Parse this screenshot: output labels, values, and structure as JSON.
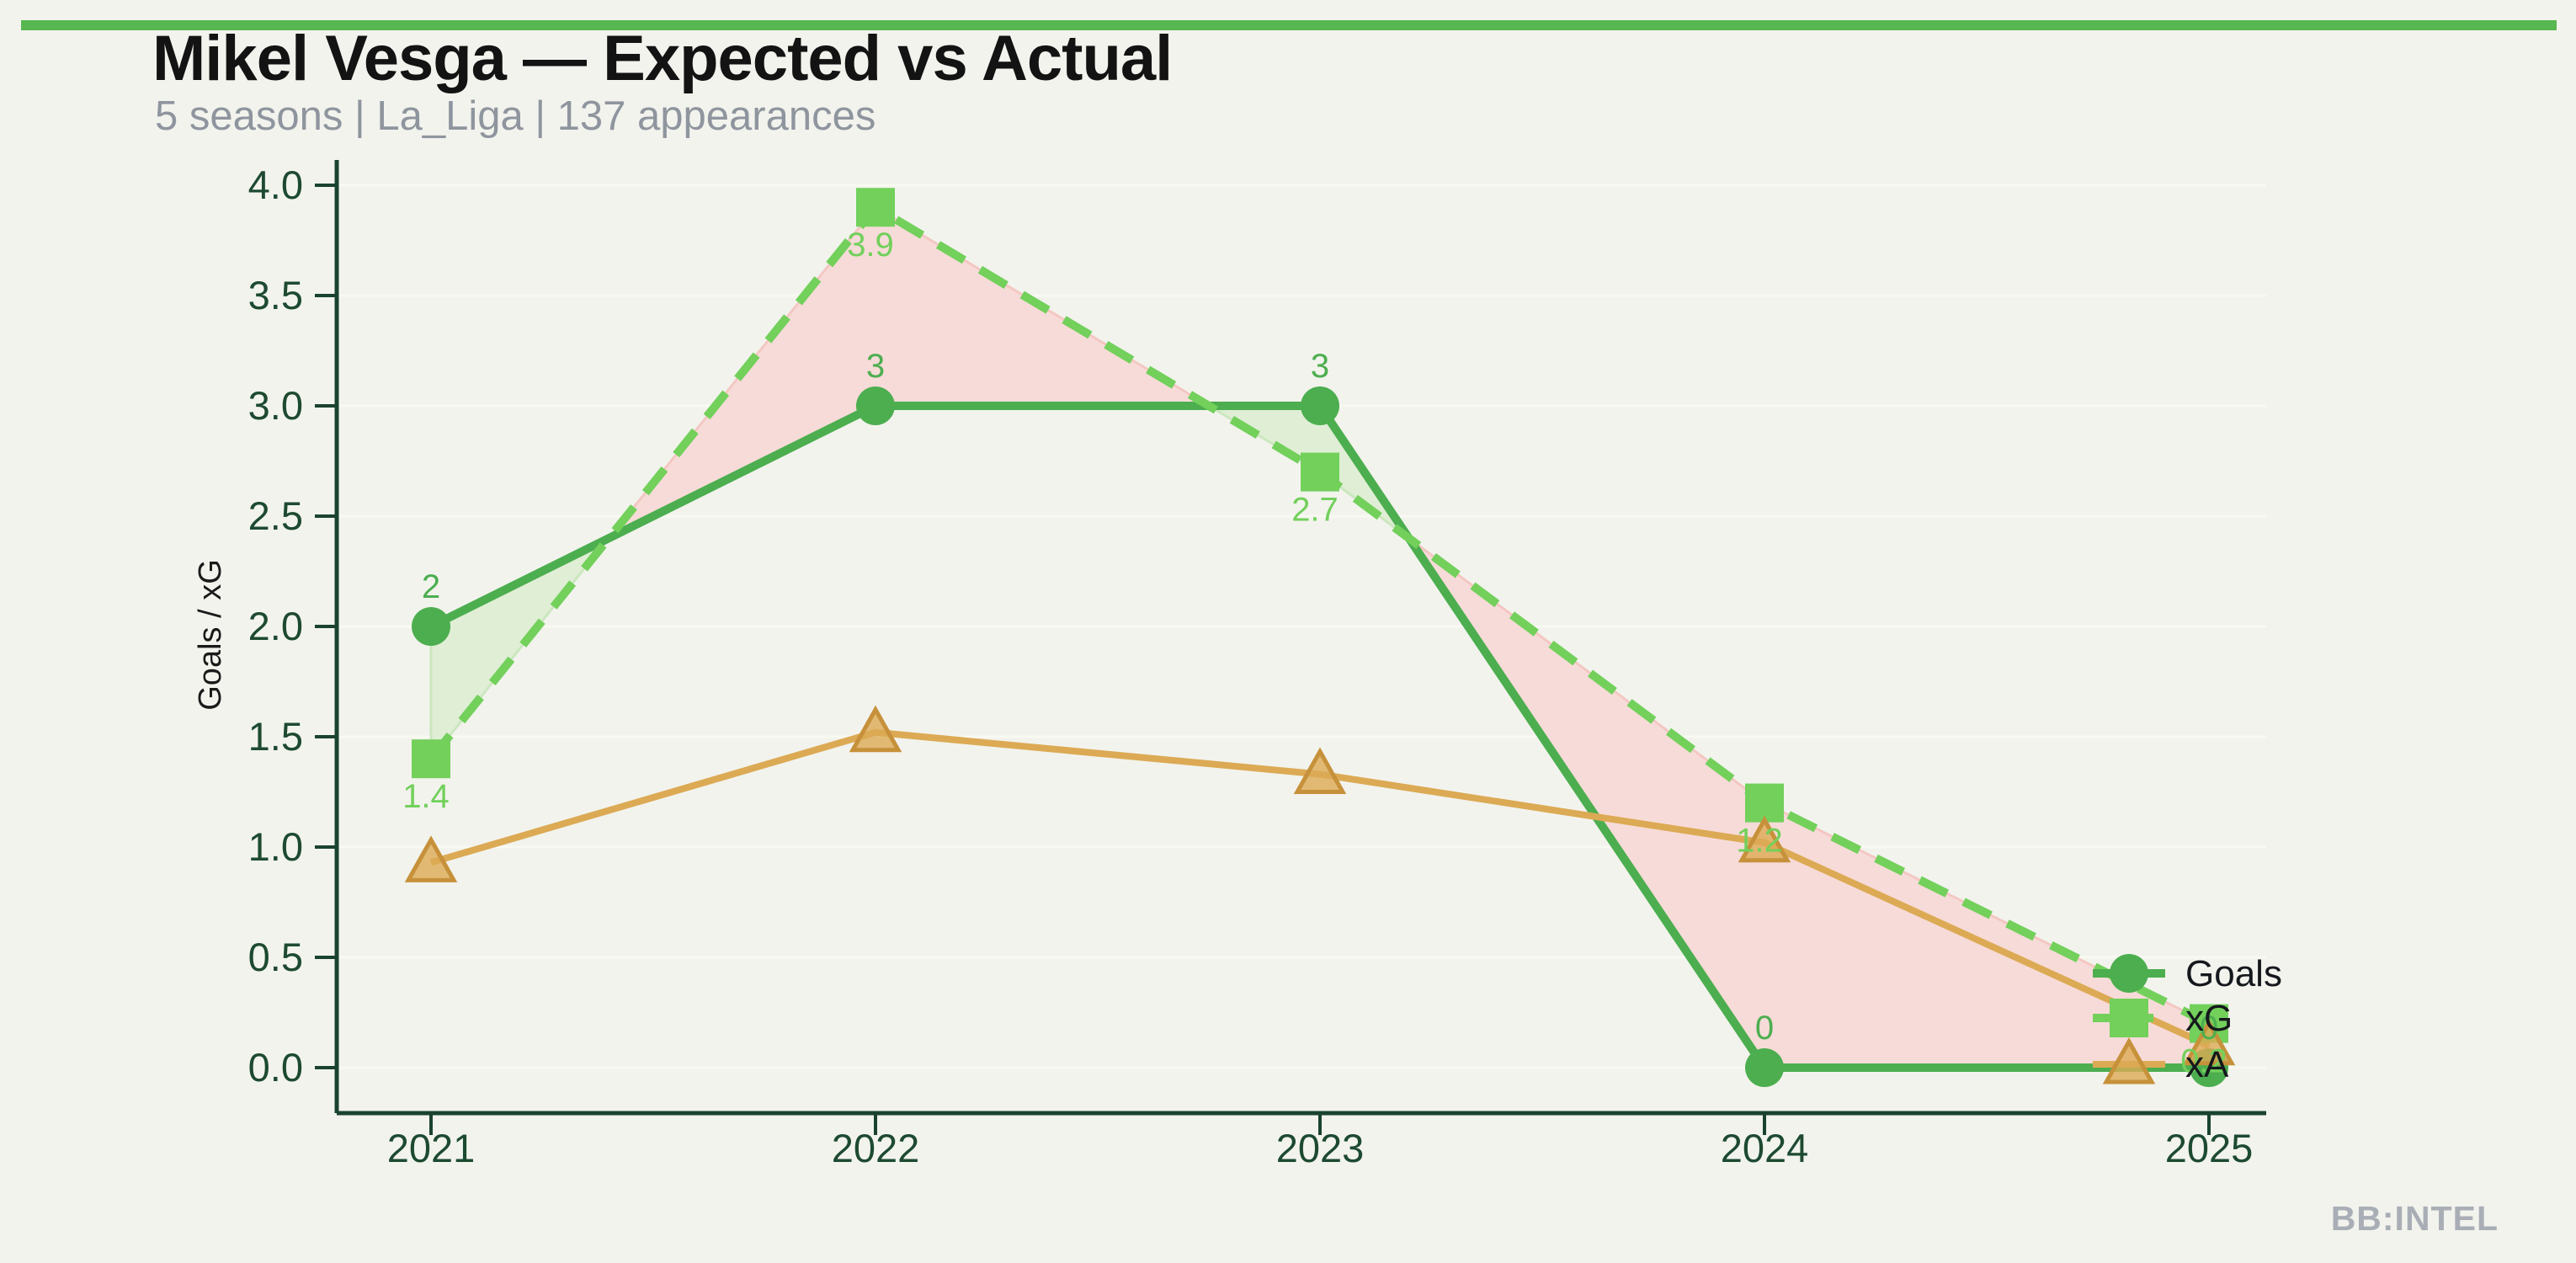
{
  "header": {
    "title": "Mikel Vesga — Expected vs Actual",
    "subtitle": "5 seasons | La_Liga | 137 appearances"
  },
  "watermark": "BB:INTEL",
  "chart_data": {
    "type": "line",
    "title": "Mikel Vesga — Expected vs Actual",
    "subtitle": "5 seasons | La_Liga | 137 appearances",
    "categories": [
      "2021",
      "2022",
      "2023",
      "2024",
      "2025"
    ],
    "series": [
      {
        "name": "Goals",
        "values": [
          2,
          3,
          3,
          0,
          0
        ],
        "labels": [
          "2",
          "3",
          "3",
          "0",
          "0"
        ],
        "marker": "circle",
        "line_style": "solid",
        "color": "#4cae4f"
      },
      {
        "name": "xG",
        "values": [
          1.4,
          3.9,
          2.7,
          1.2,
          0.2
        ],
        "labels": [
          "1.4",
          "3.9",
          "2.7",
          "1.2",
          "0.2"
        ],
        "marker": "square",
        "line_style": "dashed",
        "color": "#72d05b"
      },
      {
        "name": "xA",
        "values": [
          0.93,
          1.52,
          1.33,
          1.02,
          0.1
        ],
        "labels": null,
        "marker": "triangle",
        "line_style": "solid",
        "color": "#dcaa54"
      }
    ],
    "ylabel": "Goals / xG",
    "xlabel": "",
    "ylim": [
      0.0,
      4.0
    ],
    "yticks": [
      0.0,
      0.5,
      1.0,
      1.5,
      2.0,
      2.5,
      3.0,
      3.5,
      4.0
    ],
    "ytick_labels": [
      "0.0",
      "0.5",
      "1.0",
      "1.5",
      "2.0",
      "2.5",
      "3.0",
      "3.5",
      "4.0"
    ],
    "grid": "horizontal-faint",
    "legend_position": "right-inline",
    "legend_entries": [
      "Goals",
      "xG",
      "xA"
    ],
    "fill_between": {
      "upper_series": "Goals",
      "lower_series": "xG",
      "over_color": "#e0eed5",
      "under_color": "#f7dbd8"
    }
  },
  "colors": {
    "background": "#f2f3ed",
    "accent_bar": "#58b751",
    "goals": "#4cae4f",
    "xg": "#72d05b",
    "xa": "#dcaa54",
    "xa_marker_edge": "#c6913a",
    "fill_over": "#e0eed5",
    "fill_over_edge": "#cbe7bf",
    "fill_under": "#f7dbd8",
    "fill_under_edge": "#f4c7c3",
    "axis_spine": "#1a432e",
    "tick_text": "#1d4a31",
    "title_text": "#131313",
    "subtitle_text": "#8f959e",
    "legend_text": "#15181c",
    "watermark_text": "#a9aeb6",
    "gridline": "#f8f9f1"
  }
}
